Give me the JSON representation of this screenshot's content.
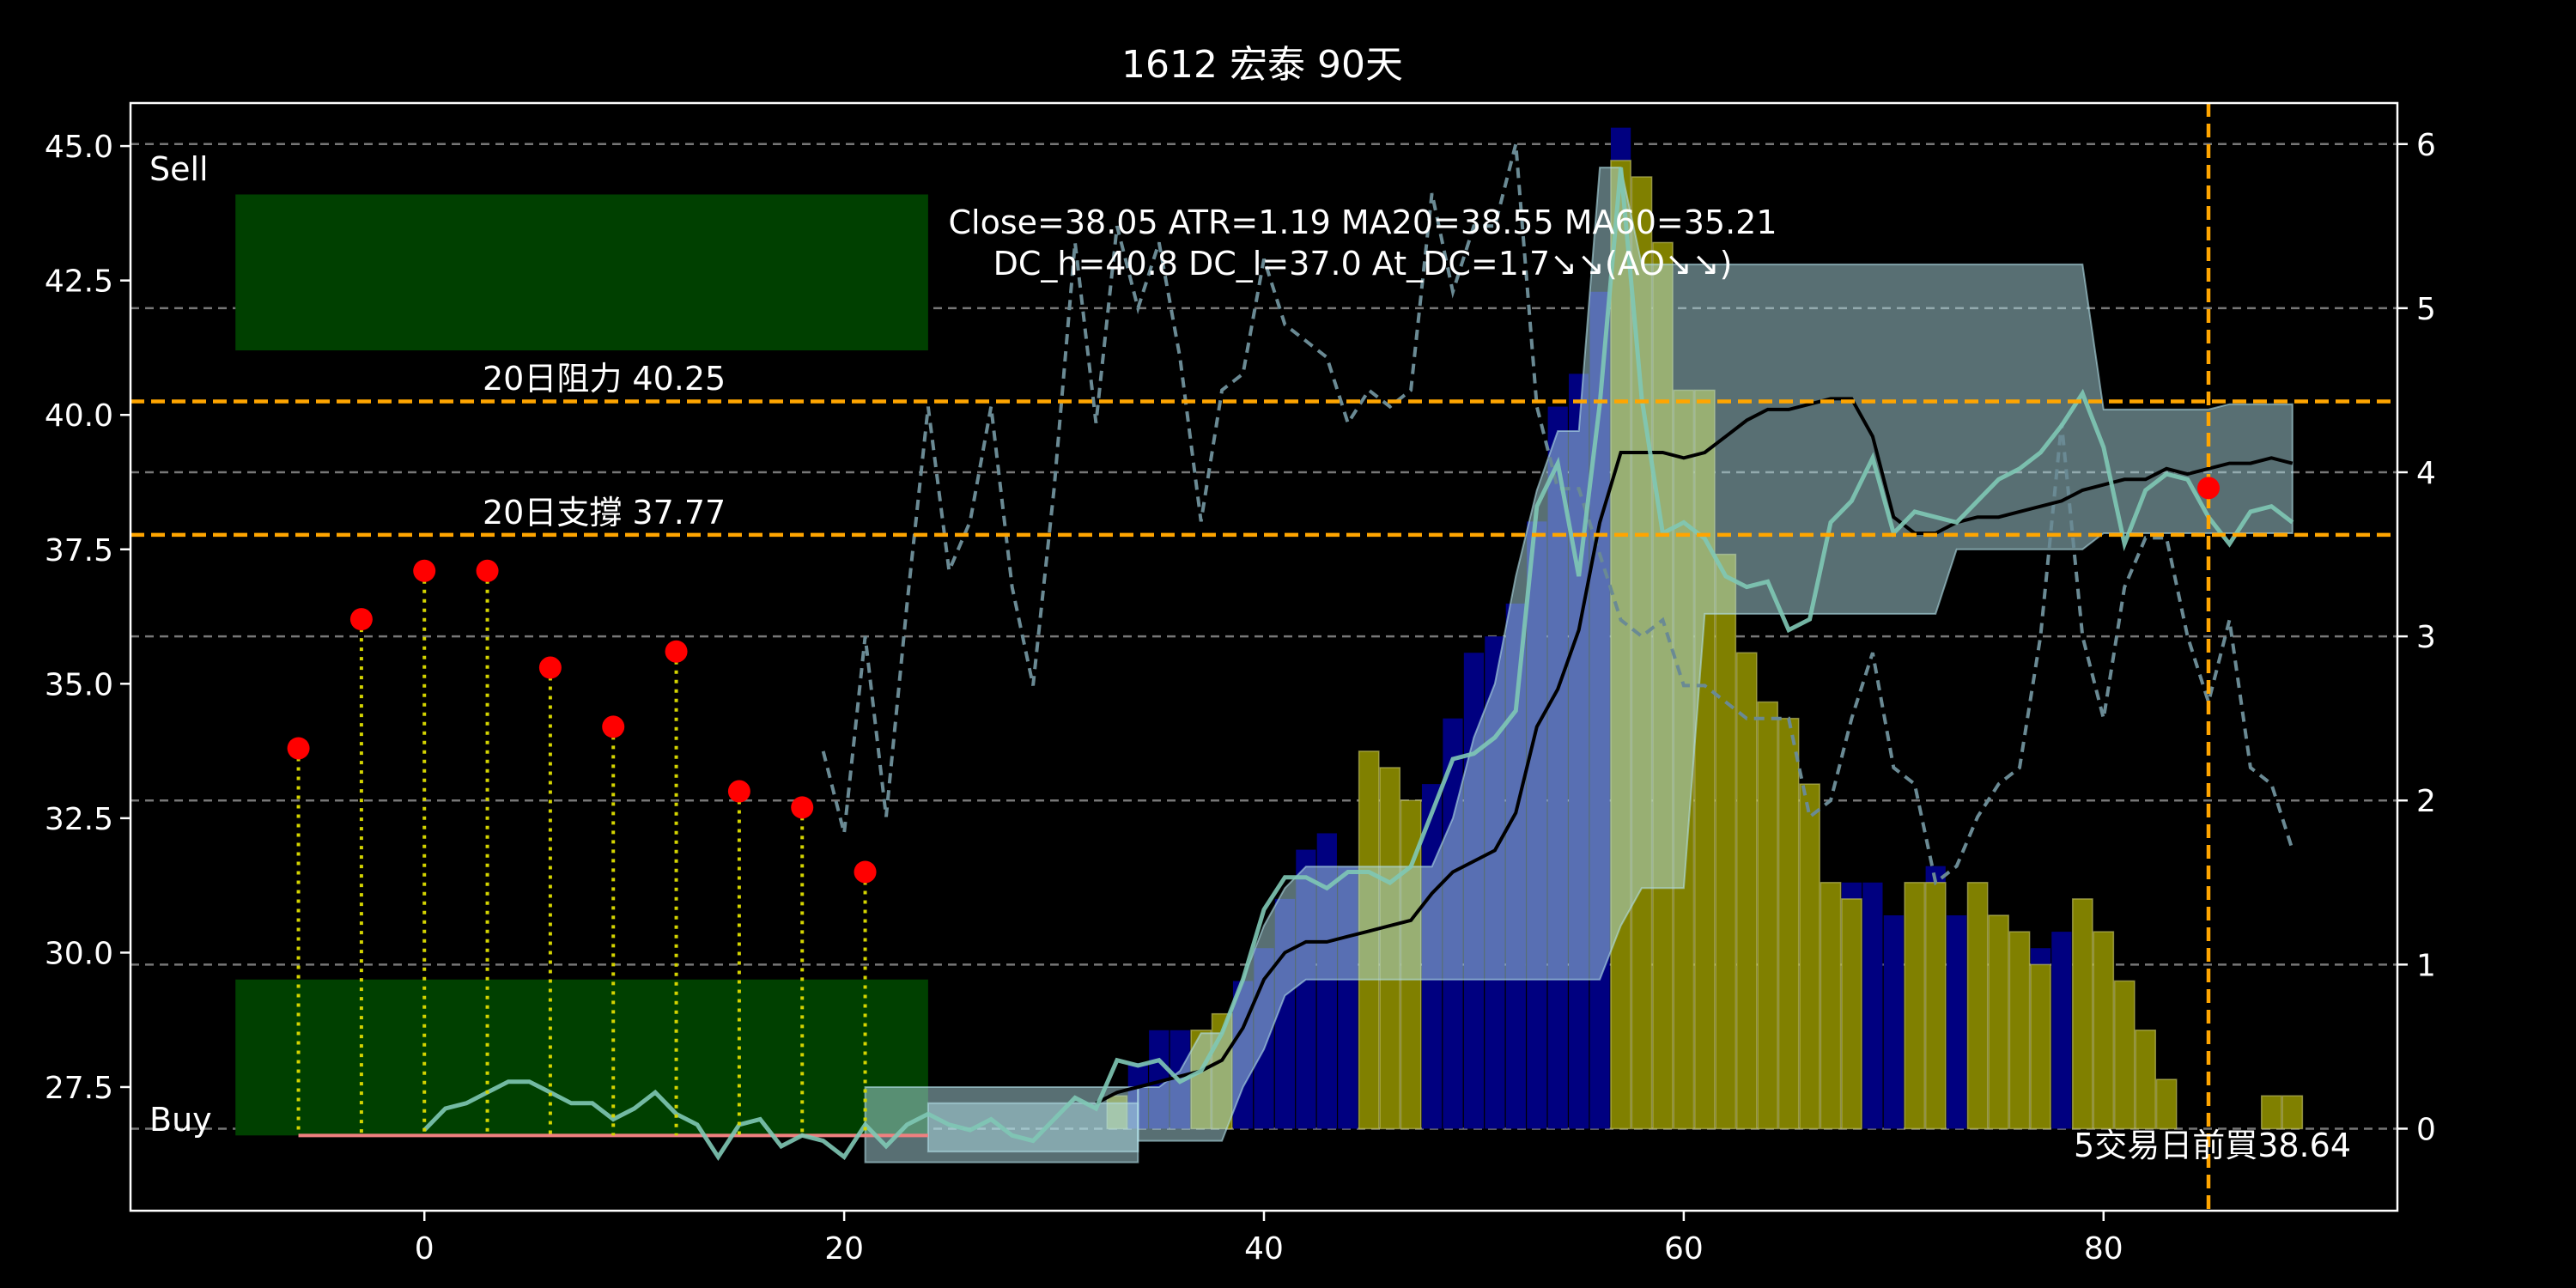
{
  "chart_data": {
    "type": "line",
    "title": "1612 宏泰 90天",
    "xlabel": "",
    "ylabel": "",
    "xlim": [
      -14,
      94
    ],
    "ylim": [
      25.2,
      45.8
    ],
    "y2lim": [
      -0.5,
      6.25
    ],
    "x_ticks": [
      0,
      20,
      40,
      60,
      80
    ],
    "y_ticks": [
      27.5,
      30.0,
      32.5,
      35.0,
      37.5,
      40.0,
      42.5,
      45.0
    ],
    "y_tick_labels": [
      "27.5",
      "30.0",
      "32.5",
      "35.0",
      "37.5",
      "40.0",
      "42.5",
      "45.0"
    ],
    "y2_ticks": [
      0,
      1,
      2,
      3,
      4,
      5,
      6
    ],
    "y2_tick_labels": [
      "0",
      "1",
      "2",
      "3",
      "4",
      "5",
      "6"
    ],
    "grid": "horizontal dashed",
    "annotation_text": {
      "info_line1": "Close=38.05 ATR=1.19 MA20=38.55 MA60=35.21",
      "info_line2": "DC_h=40.8 DC_l=37.0 At_DC=1.7↘↘(AO↘↘)",
      "resistance_label": "20日阻力 40.25",
      "support_label": "20日支撐 37.77",
      "sell_label": "Sell",
      "buy_label": "Buy",
      "buy_note": "5交易日前買38.64"
    },
    "resistance": 40.25,
    "support": 37.77,
    "vertical_marker_x": 85,
    "sell_zone": {
      "x": [
        -9,
        24
      ],
      "y": [
        41.2,
        44.1
      ]
    },
    "buy_zone": {
      "x": [
        -9,
        24
      ],
      "y": [
        26.6,
        29.5
      ]
    },
    "buy_signal_points": {
      "x": [
        -6,
        -3,
        0,
        3,
        6,
        9,
        12,
        15,
        18,
        21
      ],
      "y": [
        33.8,
        36.2,
        37.1,
        37.1,
        35.3,
        34.2,
        35.6,
        33.0,
        32.7,
        31.5
      ]
    },
    "buy_signal_base": 26.6,
    "buy_marker": {
      "x": 85,
      "y": 38.64
    },
    "close_line": {
      "x": [
        0,
        1,
        2,
        3,
        4,
        5,
        6,
        7,
        8,
        9,
        10,
        11,
        12,
        13,
        14,
        15,
        16,
        17,
        18,
        19,
        20,
        21,
        22,
        23,
        24,
        25,
        26,
        27,
        28,
        29,
        30,
        31,
        32,
        33,
        34,
        35,
        36,
        37,
        38,
        39,
        40,
        41,
        42,
        43,
        44,
        45,
        46,
        47,
        48,
        49,
        50,
        51,
        52,
        53,
        54,
        55,
        56,
        57,
        58,
        59,
        60,
        61,
        62,
        63,
        64,
        65,
        66,
        67,
        68,
        69,
        70,
        71,
        72,
        73,
        74,
        75,
        76,
        77,
        78,
        79,
        80,
        81,
        82,
        83,
        84,
        85,
        86,
        87,
        88,
        89
      ],
      "y": [
        26.7,
        27.1,
        27.2,
        27.4,
        27.6,
        27.6,
        27.4,
        27.2,
        27.2,
        26.9,
        27.1,
        27.4,
        27.0,
        26.8,
        26.2,
        26.8,
        26.9,
        26.4,
        26.6,
        26.5,
        26.2,
        26.8,
        26.4,
        26.8,
        27.0,
        26.8,
        26.7,
        26.9,
        26.6,
        26.5,
        26.9,
        27.3,
        27.1,
        28.0,
        27.9,
        28.0,
        27.6,
        27.8,
        28.5,
        29.5,
        30.8,
        31.4,
        31.4,
        31.2,
        31.5,
        31.5,
        31.3,
        31.6,
        32.6,
        33.6,
        33.7,
        34.0,
        34.5,
        38.3,
        39.1,
        37.0,
        40.2,
        44.6,
        40.3,
        37.8,
        38.0,
        37.7,
        37.0,
        36.8,
        36.9,
        36.0,
        36.2,
        38.0,
        38.4,
        39.2,
        37.8,
        38.2,
        38.1,
        38.0,
        38.4,
        38.8,
        39.0,
        39.3,
        39.8,
        40.4,
        39.4,
        37.6,
        38.6,
        38.9,
        38.8,
        38.1,
        37.6,
        38.2,
        38.3,
        38.0
      ]
    },
    "ma_line": {
      "x": [
        32,
        33,
        34,
        35,
        36,
        37,
        38,
        39,
        40,
        41,
        42,
        43,
        44,
        45,
        46,
        47,
        48,
        49,
        50,
        51,
        52,
        53,
        54,
        55,
        56,
        57,
        58,
        59,
        60,
        61,
        62,
        63,
        64,
        65,
        66,
        67,
        68,
        69,
        70,
        71,
        72,
        73,
        74,
        75,
        76,
        77,
        78,
        79,
        80,
        81,
        82,
        83,
        84,
        85,
        86,
        87,
        88,
        89
      ],
      "y": [
        27.2,
        27.4,
        27.5,
        27.6,
        27.7,
        27.8,
        28.0,
        28.6,
        29.5,
        30.0,
        30.2,
        30.2,
        30.3,
        30.4,
        30.5,
        30.6,
        31.1,
        31.5,
        31.7,
        31.9,
        32.6,
        34.2,
        34.9,
        36.0,
        38.0,
        39.3,
        39.3,
        39.3,
        39.2,
        39.3,
        39.6,
        39.9,
        40.1,
        40.1,
        40.2,
        40.3,
        40.3,
        39.6,
        38.1,
        37.8,
        37.8,
        38.0,
        38.1,
        38.1,
        38.2,
        38.3,
        38.4,
        38.6,
        38.7,
        38.8,
        38.8,
        39.0,
        38.9,
        39.0,
        39.1,
        39.1,
        39.2,
        39.1
      ]
    },
    "atr_dashed_line": {
      "x": [
        19,
        20,
        21,
        22,
        23,
        24,
        25,
        26,
        27,
        28,
        29,
        30,
        31,
        32,
        33,
        34,
        35,
        36,
        37,
        38,
        39,
        40,
        41,
        42,
        43,
        44,
        45,
        46,
        47,
        48,
        49,
        50,
        51,
        52,
        53,
        54,
        55,
        56,
        57,
        58,
        59,
        60,
        61,
        62,
        63,
        64,
        65,
        66,
        67,
        68,
        69,
        70,
        71,
        72,
        73,
        74,
        75,
        76,
        77,
        78,
        79,
        80,
        81,
        82,
        83,
        84,
        85,
        86,
        87,
        88,
        89
      ],
      "y": [
        2.3,
        1.8,
        3.0,
        1.9,
        3.2,
        4.4,
        3.4,
        3.7,
        4.4,
        3.3,
        2.7,
        3.9,
        5.4,
        4.3,
        5.5,
        5.0,
        5.4,
        4.7,
        3.7,
        4.5,
        4.6,
        5.3,
        4.9,
        4.8,
        4.7,
        4.3,
        4.5,
        4.4,
        4.5,
        5.7,
        5.1,
        5.5,
        5.5,
        6.0,
        4.4,
        3.9,
        3.9,
        3.5,
        3.1,
        3.0,
        3.1,
        2.7,
        2.7,
        2.6,
        2.5,
        2.5,
        2.5,
        1.9,
        2.0,
        2.5,
        2.9,
        2.2,
        2.1,
        1.5,
        1.6,
        1.9,
        2.1,
        2.2,
        3.0,
        4.3,
        3.0,
        2.5,
        3.3,
        3.6,
        3.6,
        3.0,
        2.6,
        3.1,
        2.2,
        2.1,
        1.7
      ]
    },
    "support_segment": {
      "x": [
        -6,
        24
      ],
      "y": 26.6
    },
    "channel_bands": [
      {
        "name": "",
        "x": [
          21,
          21,
          34,
          34
        ],
        "lower": [
          26.1,
          26.1,
          26.1,
          26.1
        ],
        "upper": [
          27.5,
          27.5,
          27.5,
          27.5
        ]
      },
      {
        "name": "",
        "x": [
          24,
          24,
          34
        ],
        "lower": [
          26.3,
          26.3,
          26.3
        ],
        "upper": [
          27.2,
          27.2,
          27.2
        ]
      },
      {
        "name": "",
        "x": [
          34,
          35,
          36,
          37,
          38,
          39,
          40,
          41,
          42,
          43,
          44,
          45,
          46,
          47,
          48,
          49,
          50,
          51,
          52,
          53,
          54,
          55,
          56,
          57,
          58,
          59,
          60,
          61,
          62,
          63,
          64,
          65,
          66,
          67,
          68,
          69,
          70,
          71,
          72,
          73,
          74,
          75,
          76,
          77,
          78,
          79,
          80,
          81,
          82,
          83,
          84,
          85,
          86,
          87,
          88,
          89
        ],
        "lower": [
          26.5,
          26.5,
          26.5,
          26.5,
          26.5,
          27.5,
          28.2,
          29.2,
          29.5,
          29.5,
          29.5,
          29.5,
          29.5,
          29.5,
          29.5,
          29.5,
          29.5,
          29.5,
          29.5,
          29.5,
          29.5,
          29.5,
          29.5,
          30.5,
          31.2,
          31.2,
          31.2,
          36.3,
          36.3,
          36.3,
          36.3,
          36.3,
          36.3,
          36.3,
          36.3,
          36.3,
          36.3,
          36.3,
          36.3,
          37.5,
          37.5,
          37.5,
          37.5,
          37.5,
          37.5,
          37.5,
          37.8,
          37.8,
          37.8,
          37.8,
          37.8,
          37.8,
          37.8,
          37.8,
          37.8,
          37.8
        ],
        "upper": [
          27.5,
          27.5,
          27.8,
          28.5,
          28.5,
          29.5,
          30.5,
          31.2,
          31.6,
          31.6,
          31.6,
          31.6,
          31.6,
          31.6,
          31.6,
          32.5,
          34.0,
          35.0,
          37.0,
          38.6,
          39.7,
          39.7,
          44.6,
          44.6,
          42.8,
          42.8,
          42.8,
          42.8,
          42.8,
          42.8,
          42.8,
          42.8,
          42.8,
          42.8,
          42.8,
          42.8,
          42.8,
          42.8,
          42.8,
          42.8,
          42.8,
          42.8,
          42.8,
          42.8,
          42.8,
          42.8,
          40.1,
          40.1,
          40.1,
          40.1,
          40.1,
          40.1,
          40.2,
          40.2,
          40.2,
          40.2
        ]
      }
    ],
    "volume_bars_blue": {
      "x": [
        33,
        34,
        35,
        36,
        37,
        39,
        40,
        41,
        42,
        43,
        44,
        46,
        47,
        48,
        49,
        50,
        51,
        52,
        53,
        54,
        55,
        56,
        57,
        66,
        68,
        69,
        70,
        71,
        72,
        73,
        74,
        75,
        76,
        77,
        78,
        79
      ],
      "y": [
        0.2,
        0.4,
        0.6,
        0.6,
        0.6,
        0.9,
        1.1,
        1.4,
        1.7,
        1.8,
        1.6,
        1.3,
        1.4,
        2.1,
        2.5,
        2.9,
        3.0,
        3.2,
        3.7,
        4.4,
        4.6,
        5.1,
        6.1,
        1.3,
        1.5,
        1.5,
        1.3,
        1.3,
        1.6,
        1.3,
        1.2,
        1.1,
        1.0,
        1.1,
        1.2,
        1.2
      ]
    },
    "volume_bars_yellow": {
      "x": [
        33,
        37,
        38,
        45,
        46,
        47,
        57,
        58,
        59,
        60,
        61,
        62,
        63,
        64,
        65,
        66,
        67,
        68,
        71,
        72,
        74,
        75,
        76,
        77,
        79,
        80,
        81,
        82,
        83,
        88,
        89
      ],
      "y": [
        0.2,
        0.6,
        0.7,
        2.3,
        2.2,
        2.0,
        5.9,
        5.8,
        5.4,
        4.5,
        4.5,
        3.5,
        2.9,
        2.6,
        2.5,
        2.1,
        1.5,
        1.4,
        1.5,
        1.5,
        1.5,
        1.3,
        1.2,
        1.0,
        1.4,
        1.2,
        0.9,
        0.6,
        0.3,
        0.2,
        0.2
      ]
    },
    "colors": {
      "background": "#000000",
      "sell_zone": "#004000",
      "buy_zone": "#004000",
      "level_line": "#FFA500",
      "signal_dot": "#FF0000",
      "signal_stem": "#D4D400",
      "close_line": "#7FC8B5",
      "ma_line": "#000000",
      "atr_line": "#6A8A94",
      "band_fill": "#B0DDE6",
      "vol_blue": "#000080",
      "vol_yellow": "#808000",
      "support_segment": "#F08080",
      "grid": "#777777"
    }
  }
}
